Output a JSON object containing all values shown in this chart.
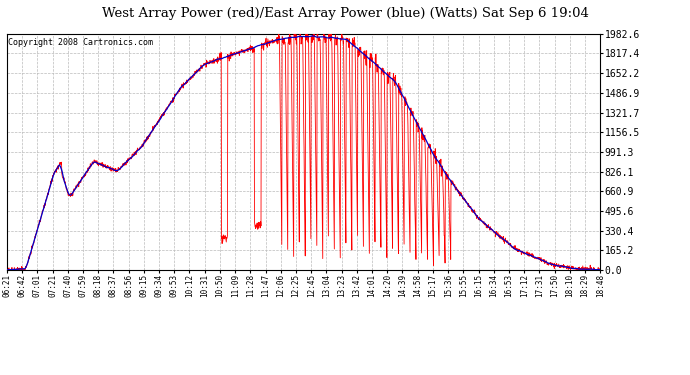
{
  "title": "West Array Power (red)/East Array Power (blue) (Watts) Sat Sep 6 19:04",
  "copyright": "Copyright 2008 Cartronics.com",
  "ylabel_ticks": [
    0.0,
    165.2,
    330.4,
    495.6,
    660.9,
    826.1,
    991.3,
    1156.5,
    1321.7,
    1486.9,
    1652.2,
    1817.4,
    1982.6
  ],
  "ylim": [
    0.0,
    1982.6
  ],
  "bg_color": "#ffffff",
  "red_color": "#ff0000",
  "blue_color": "#0000cc",
  "grid_color": "#bbbbbb",
  "x_tick_labels": [
    "06:21",
    "06:42",
    "07:01",
    "07:21",
    "07:40",
    "07:59",
    "08:18",
    "08:37",
    "08:56",
    "09:15",
    "09:34",
    "09:53",
    "10:12",
    "10:31",
    "10:50",
    "11:09",
    "11:28",
    "11:47",
    "12:06",
    "12:25",
    "12:45",
    "13:04",
    "13:23",
    "13:42",
    "14:01",
    "14:20",
    "14:39",
    "14:58",
    "15:17",
    "15:36",
    "15:55",
    "16:15",
    "16:34",
    "16:53",
    "17:12",
    "17:31",
    "17:50",
    "18:10",
    "18:29",
    "18:48"
  ]
}
